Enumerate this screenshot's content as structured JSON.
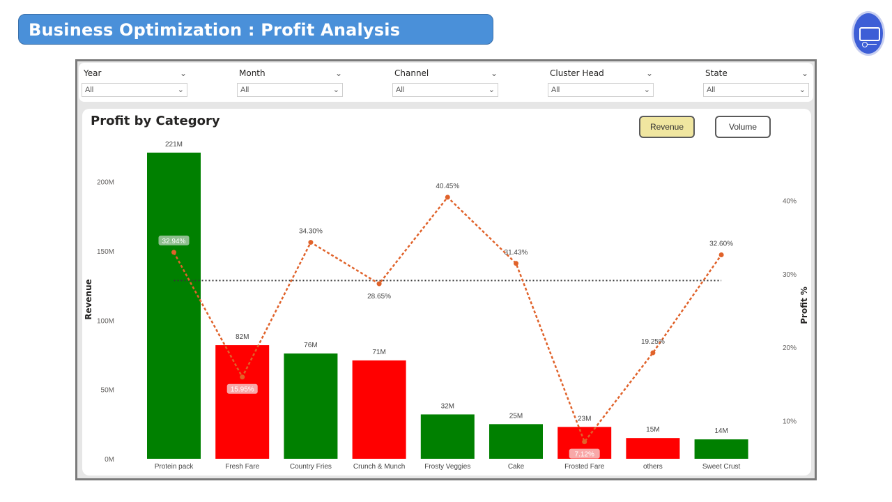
{
  "header": {
    "title": "Business Optimization : Profit Analysis"
  },
  "filters": [
    {
      "label": "Year",
      "value": "All"
    },
    {
      "label": "Month",
      "value": "All"
    },
    {
      "label": "Channel",
      "value": "All"
    },
    {
      "label": "Cluster Head",
      "value": "All"
    },
    {
      "label": "State",
      "value": "All"
    }
  ],
  "panel": {
    "title": "Profit by Category",
    "toggles": {
      "revenue": "Revenue",
      "volume": "Volume"
    },
    "active_toggle_color": "#f0e6a0"
  },
  "colors": {
    "above_avg": "#008000",
    "below_avg": "#ff0000",
    "line": "#e0622a",
    "avg_line": "#333333",
    "title_bar": "#4a90d9"
  },
  "chart_data": {
    "type": "bar",
    "title": "Profit by Category",
    "ylabel": "Revenue",
    "y2label": "Profit %",
    "ylim": [
      0,
      230
    ],
    "y_ticks": [
      "0M",
      "50M",
      "100M",
      "150M",
      "200M"
    ],
    "y2lim": [
      5,
      46.8
    ],
    "y2_ticks": [
      "10%",
      "20%",
      "30%",
      "40%"
    ],
    "categories": [
      "Protein pack",
      "Fresh Fare",
      "Country Fries",
      "Crunch & Munch",
      "Frosty Veggies",
      "Cake",
      "Frosted Fare",
      "others",
      "Sweet Crust"
    ],
    "series": [
      {
        "name": "Revenue",
        "values": [
          221,
          82,
          76,
          71,
          32,
          25,
          23,
          15,
          14
        ],
        "labels": [
          "221M",
          "82M",
          "76M",
          "71M",
          "32M",
          "25M",
          "23M",
          "15M",
          "14M"
        ]
      },
      {
        "name": "Profit %",
        "values": [
          32.94,
          15.95,
          34.3,
          28.65,
          40.45,
          31.43,
          7.12,
          19.25,
          32.6
        ],
        "labels": [
          "32.94%",
          "15.95%",
          "34.30%",
          "28.65%",
          "40.45%",
          "31.43%",
          "7.12%",
          "19.25%",
          "32.60%"
        ]
      }
    ],
    "bar_status": [
      "above",
      "below",
      "above",
      "below",
      "above",
      "above",
      "below",
      "below",
      "above"
    ],
    "average_profit_pct": 29.1,
    "grid": false
  }
}
